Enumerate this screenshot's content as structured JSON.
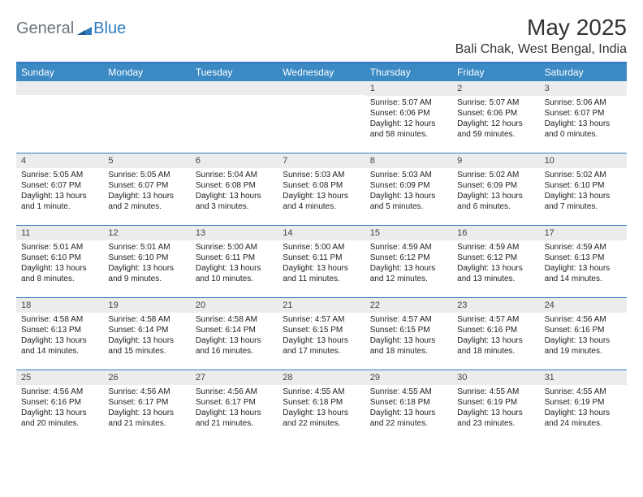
{
  "logo": {
    "text1": "General",
    "text2": "Blue"
  },
  "title": "May 2025",
  "location": "Bali Chak, West Bengal, India",
  "header_bg": "#3b8ac4",
  "border_color": "#2f7bbf",
  "daynum_bg": "#ececec",
  "dayNames": [
    "Sunday",
    "Monday",
    "Tuesday",
    "Wednesday",
    "Thursday",
    "Friday",
    "Saturday"
  ],
  "weeks": [
    [
      null,
      null,
      null,
      null,
      {
        "n": "1",
        "sr": "Sunrise: 5:07 AM",
        "ss": "Sunset: 6:06 PM",
        "dl1": "Daylight: 12 hours",
        "dl2": "and 58 minutes."
      },
      {
        "n": "2",
        "sr": "Sunrise: 5:07 AM",
        "ss": "Sunset: 6:06 PM",
        "dl1": "Daylight: 12 hours",
        "dl2": "and 59 minutes."
      },
      {
        "n": "3",
        "sr": "Sunrise: 5:06 AM",
        "ss": "Sunset: 6:07 PM",
        "dl1": "Daylight: 13 hours",
        "dl2": "and 0 minutes."
      }
    ],
    [
      {
        "n": "4",
        "sr": "Sunrise: 5:05 AM",
        "ss": "Sunset: 6:07 PM",
        "dl1": "Daylight: 13 hours",
        "dl2": "and 1 minute."
      },
      {
        "n": "5",
        "sr": "Sunrise: 5:05 AM",
        "ss": "Sunset: 6:07 PM",
        "dl1": "Daylight: 13 hours",
        "dl2": "and 2 minutes."
      },
      {
        "n": "6",
        "sr": "Sunrise: 5:04 AM",
        "ss": "Sunset: 6:08 PM",
        "dl1": "Daylight: 13 hours",
        "dl2": "and 3 minutes."
      },
      {
        "n": "7",
        "sr": "Sunrise: 5:03 AM",
        "ss": "Sunset: 6:08 PM",
        "dl1": "Daylight: 13 hours",
        "dl2": "and 4 minutes."
      },
      {
        "n": "8",
        "sr": "Sunrise: 5:03 AM",
        "ss": "Sunset: 6:09 PM",
        "dl1": "Daylight: 13 hours",
        "dl2": "and 5 minutes."
      },
      {
        "n": "9",
        "sr": "Sunrise: 5:02 AM",
        "ss": "Sunset: 6:09 PM",
        "dl1": "Daylight: 13 hours",
        "dl2": "and 6 minutes."
      },
      {
        "n": "10",
        "sr": "Sunrise: 5:02 AM",
        "ss": "Sunset: 6:10 PM",
        "dl1": "Daylight: 13 hours",
        "dl2": "and 7 minutes."
      }
    ],
    [
      {
        "n": "11",
        "sr": "Sunrise: 5:01 AM",
        "ss": "Sunset: 6:10 PM",
        "dl1": "Daylight: 13 hours",
        "dl2": "and 8 minutes."
      },
      {
        "n": "12",
        "sr": "Sunrise: 5:01 AM",
        "ss": "Sunset: 6:10 PM",
        "dl1": "Daylight: 13 hours",
        "dl2": "and 9 minutes."
      },
      {
        "n": "13",
        "sr": "Sunrise: 5:00 AM",
        "ss": "Sunset: 6:11 PM",
        "dl1": "Daylight: 13 hours",
        "dl2": "and 10 minutes."
      },
      {
        "n": "14",
        "sr": "Sunrise: 5:00 AM",
        "ss": "Sunset: 6:11 PM",
        "dl1": "Daylight: 13 hours",
        "dl2": "and 11 minutes."
      },
      {
        "n": "15",
        "sr": "Sunrise: 4:59 AM",
        "ss": "Sunset: 6:12 PM",
        "dl1": "Daylight: 13 hours",
        "dl2": "and 12 minutes."
      },
      {
        "n": "16",
        "sr": "Sunrise: 4:59 AM",
        "ss": "Sunset: 6:12 PM",
        "dl1": "Daylight: 13 hours",
        "dl2": "and 13 minutes."
      },
      {
        "n": "17",
        "sr": "Sunrise: 4:59 AM",
        "ss": "Sunset: 6:13 PM",
        "dl1": "Daylight: 13 hours",
        "dl2": "and 14 minutes."
      }
    ],
    [
      {
        "n": "18",
        "sr": "Sunrise: 4:58 AM",
        "ss": "Sunset: 6:13 PM",
        "dl1": "Daylight: 13 hours",
        "dl2": "and 14 minutes."
      },
      {
        "n": "19",
        "sr": "Sunrise: 4:58 AM",
        "ss": "Sunset: 6:14 PM",
        "dl1": "Daylight: 13 hours",
        "dl2": "and 15 minutes."
      },
      {
        "n": "20",
        "sr": "Sunrise: 4:58 AM",
        "ss": "Sunset: 6:14 PM",
        "dl1": "Daylight: 13 hours",
        "dl2": "and 16 minutes."
      },
      {
        "n": "21",
        "sr": "Sunrise: 4:57 AM",
        "ss": "Sunset: 6:15 PM",
        "dl1": "Daylight: 13 hours",
        "dl2": "and 17 minutes."
      },
      {
        "n": "22",
        "sr": "Sunrise: 4:57 AM",
        "ss": "Sunset: 6:15 PM",
        "dl1": "Daylight: 13 hours",
        "dl2": "and 18 minutes."
      },
      {
        "n": "23",
        "sr": "Sunrise: 4:57 AM",
        "ss": "Sunset: 6:16 PM",
        "dl1": "Daylight: 13 hours",
        "dl2": "and 18 minutes."
      },
      {
        "n": "24",
        "sr": "Sunrise: 4:56 AM",
        "ss": "Sunset: 6:16 PM",
        "dl1": "Daylight: 13 hours",
        "dl2": "and 19 minutes."
      }
    ],
    [
      {
        "n": "25",
        "sr": "Sunrise: 4:56 AM",
        "ss": "Sunset: 6:16 PM",
        "dl1": "Daylight: 13 hours",
        "dl2": "and 20 minutes."
      },
      {
        "n": "26",
        "sr": "Sunrise: 4:56 AM",
        "ss": "Sunset: 6:17 PM",
        "dl1": "Daylight: 13 hours",
        "dl2": "and 21 minutes."
      },
      {
        "n": "27",
        "sr": "Sunrise: 4:56 AM",
        "ss": "Sunset: 6:17 PM",
        "dl1": "Daylight: 13 hours",
        "dl2": "and 21 minutes."
      },
      {
        "n": "28",
        "sr": "Sunrise: 4:55 AM",
        "ss": "Sunset: 6:18 PM",
        "dl1": "Daylight: 13 hours",
        "dl2": "and 22 minutes."
      },
      {
        "n": "29",
        "sr": "Sunrise: 4:55 AM",
        "ss": "Sunset: 6:18 PM",
        "dl1": "Daylight: 13 hours",
        "dl2": "and 22 minutes."
      },
      {
        "n": "30",
        "sr": "Sunrise: 4:55 AM",
        "ss": "Sunset: 6:19 PM",
        "dl1": "Daylight: 13 hours",
        "dl2": "and 23 minutes."
      },
      {
        "n": "31",
        "sr": "Sunrise: 4:55 AM",
        "ss": "Sunset: 6:19 PM",
        "dl1": "Daylight: 13 hours",
        "dl2": "and 24 minutes."
      }
    ]
  ]
}
